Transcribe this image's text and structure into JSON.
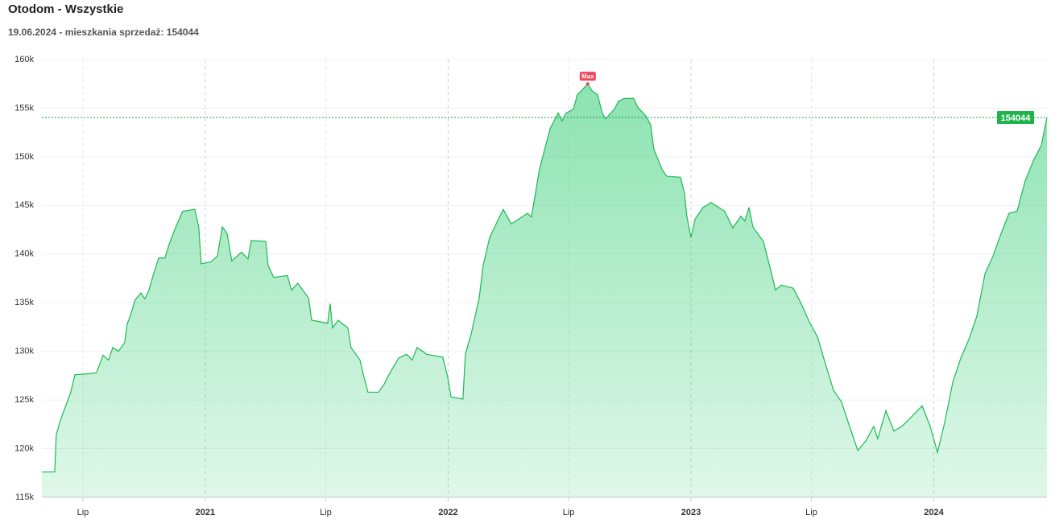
{
  "chart_data": {
    "type": "area",
    "title": "Otodom - Wszystkie",
    "subtitle": "19.06.2024 - mieszkania sprzedaż: 154044",
    "max_label": "Max",
    "color": "#1db954",
    "grid": true,
    "xlim": [
      2020.327,
      2024.466
    ],
    "ylim": [
      115000,
      160000
    ],
    "xticks": [
      {
        "value": 2020.496,
        "label": "Lip"
      },
      2021,
      {
        "value": 2021.496,
        "label": "Lip"
      },
      2022,
      {
        "value": 2022.496,
        "label": "Lip"
      },
      2023,
      {
        "value": 2023.496,
        "label": "Lip"
      },
      2024
    ],
    "yticks": [
      {
        "value": 115000,
        "label": "115k"
      },
      {
        "value": 120000,
        "label": "120k"
      },
      {
        "value": 125000,
        "label": "125k"
      },
      {
        "value": 130000,
        "label": "130k"
      },
      {
        "value": 135000,
        "label": "135k"
      },
      {
        "value": 140000,
        "label": "140k"
      },
      {
        "value": 145000,
        "label": "145k"
      },
      {
        "value": 150000,
        "label": "150k"
      },
      {
        "value": 155000,
        "label": "155k"
      },
      {
        "value": 160000,
        "label": "160k"
      }
    ],
    "x": [
      2020.327,
      2020.38,
      2020.386,
      2020.403,
      2020.446,
      2020.463,
      2020.519,
      2020.552,
      2020.579,
      2020.602,
      2020.619,
      2020.642,
      2020.668,
      2020.678,
      2020.692,
      2020.711,
      2020.735,
      2020.751,
      2020.768,
      2020.784,
      2020.808,
      2020.834,
      2020.851,
      2020.877,
      2020.907,
      2020.957,
      2020.973,
      2020.983,
      2021.023,
      2021.05,
      2021.07,
      2021.09,
      2021.109,
      2021.149,
      2021.176,
      2021.189,
      2021.249,
      2021.259,
      2021.282,
      2021.338,
      2021.355,
      2021.381,
      2021.425,
      2021.438,
      2021.504,
      2021.514,
      2021.524,
      2021.547,
      2021.587,
      2021.6,
      2021.637,
      2021.653,
      2021.67,
      2021.713,
      2021.736,
      2021.756,
      2021.796,
      2021.829,
      2021.852,
      2021.872,
      2021.912,
      2021.978,
      2021.998,
      2022.012,
      2022.061,
      2022.071,
      2022.095,
      2022.128,
      2022.144,
      2022.171,
      2022.211,
      2022.227,
      2022.26,
      2022.327,
      2022.343,
      2022.36,
      2022.376,
      2022.4,
      2022.42,
      2022.453,
      2022.469,
      2022.486,
      2022.516,
      2022.532,
      2022.549,
      2022.575,
      2022.592,
      2022.615,
      2022.635,
      2022.648,
      2022.685,
      2022.701,
      2022.725,
      2022.764,
      2022.781,
      2022.814,
      2022.834,
      2022.847,
      2022.881,
      2022.9,
      2022.957,
      2022.973,
      2022.983,
      2023.0,
      2023.017,
      2023.05,
      2023.083,
      2023.139,
      2023.172,
      2023.206,
      2023.222,
      2023.239,
      2023.255,
      2023.298,
      2023.332,
      2023.348,
      2023.371,
      2023.421,
      2023.454,
      2023.488,
      2023.521,
      2023.554,
      2023.587,
      2023.62,
      2023.653,
      2023.687,
      2023.72,
      2023.753,
      2023.769,
      2023.803,
      2023.836,
      2023.869,
      2023.902,
      2023.952,
      2023.985,
      2024.015,
      2024.045,
      2024.078,
      2024.111,
      2024.144,
      2024.177,
      2024.211,
      2024.244,
      2024.277,
      2024.31,
      2024.343,
      2024.376,
      2024.41,
      2024.443,
      2024.466
    ],
    "values": [
      117600,
      117600,
      121400,
      122900,
      125800,
      127600,
      127700,
      127800,
      129600,
      129100,
      130400,
      130000,
      130900,
      132800,
      133700,
      135300,
      136000,
      135400,
      136300,
      137700,
      139600,
      139600,
      141000,
      142700,
      144400,
      144600,
      142800,
      139000,
      139200,
      139800,
      142800,
      142100,
      139300,
      140200,
      139500,
      141400,
      141300,
      138800,
      137600,
      137800,
      136300,
      137000,
      135500,
      133200,
      132900,
      134900,
      132400,
      133200,
      132400,
      130400,
      129100,
      127400,
      125800,
      125800,
      126600,
      127600,
      129300,
      129700,
      129100,
      130400,
      129700,
      129400,
      127400,
      125300,
      125100,
      129700,
      131800,
      135500,
      138800,
      141700,
      143800,
      144600,
      143100,
      144200,
      143800,
      146300,
      148700,
      151000,
      152900,
      154500,
      153700,
      154500,
      154900,
      156400,
      156800,
      157500,
      156800,
      156400,
      154500,
      153900,
      154900,
      155700,
      156000,
      156000,
      155100,
      154200,
      153300,
      150800,
      148700,
      148000,
      147900,
      146300,
      143900,
      141700,
      143600,
      144800,
      145300,
      144400,
      142700,
      143900,
      143400,
      144800,
      142800,
      141300,
      138000,
      136300,
      136800,
      136500,
      134900,
      133000,
      131500,
      128700,
      126000,
      124800,
      122300,
      119800,
      120800,
      122300,
      121000,
      123900,
      121800,
      122300,
      123100,
      124400,
      122300,
      119600,
      122700,
      126800,
      129300,
      131200,
      133600,
      138000,
      139800,
      142100,
      144200,
      144400,
      147500,
      149600,
      151200,
      154044
    ]
  }
}
